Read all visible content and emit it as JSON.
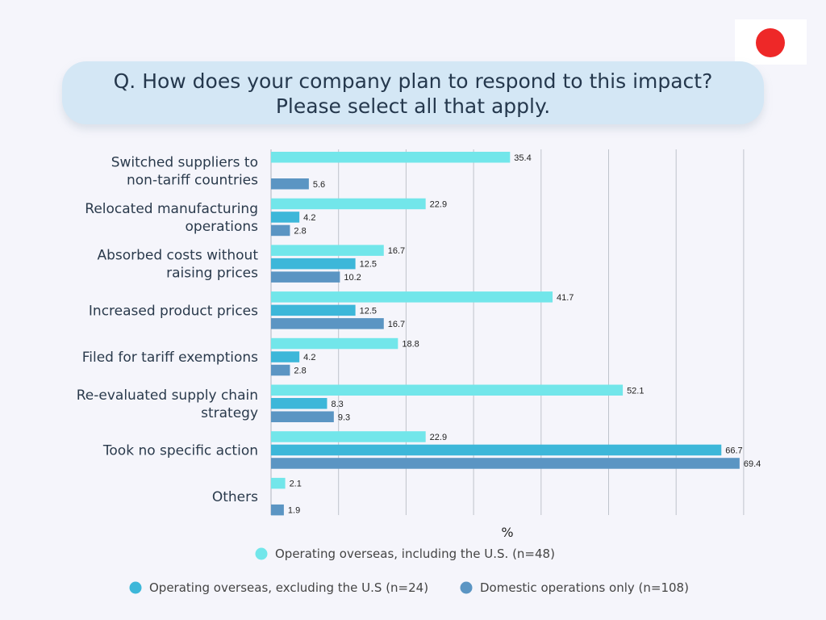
{
  "question": {
    "line1": "Q.  How does your company plan to respond to this impact?",
    "line2": "Please select all that apply."
  },
  "flag": {
    "icon": "japan-flag-icon",
    "sun_color": "#ee2828"
  },
  "chart_data": {
    "type": "bar",
    "orientation": "horizontal",
    "unit_label": "%",
    "xlim": [
      0,
      70
    ],
    "grid": true,
    "legend_position": "bottom",
    "categories": [
      [
        "Switched suppliers to",
        "non-tariff countries"
      ],
      [
        "Relocated manufacturing",
        "operations"
      ],
      [
        "Absorbed costs without",
        "raising prices"
      ],
      [
        "Increased product prices"
      ],
      [
        "Filed for tariff exemptions"
      ],
      [
        "Re-evaluated supply chain",
        "strategy"
      ],
      [
        "Took no specific action"
      ],
      [
        "Others"
      ]
    ],
    "series": [
      {
        "name": "Operating overseas, including the U.S. (n=48)",
        "color": "#72e6ea",
        "values": [
          "35.4",
          "22.9",
          "16.7",
          "41.7",
          "18.8",
          "52.1",
          "22.9",
          "2.1"
        ]
      },
      {
        "name": "Operating overseas, excluding the U.S (n=24)",
        "color": "#3db7d9",
        "values": [
          null,
          "4.2",
          "12.5",
          "12.5",
          "4.2",
          "8.3",
          "66.7",
          null
        ]
      },
      {
        "name": "Domestic operations only (n=108)",
        "color": "#5b95c3",
        "values": [
          "5.6",
          "2.8",
          "10.2",
          "16.7",
          "2.8",
          "9.3",
          "69.4",
          "1.9"
        ]
      }
    ]
  }
}
